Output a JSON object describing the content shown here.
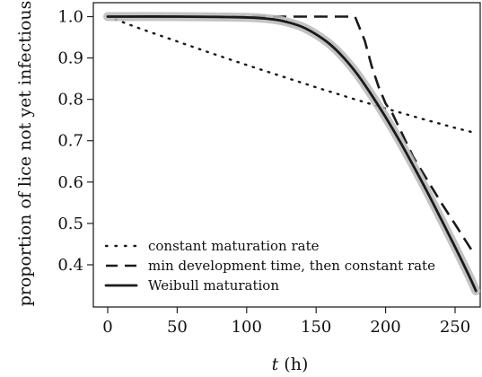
{
  "chart_data": {
    "type": "line",
    "xlabel": "t (h)",
    "xlabel_parts": {
      "italic": "t",
      "rest": " (h)"
    },
    "ylabel": "proportion of lice not yet infectious",
    "xlim": [
      0,
      265
    ],
    "ylim": [
      0.33,
      1.01
    ],
    "x_ticks": [
      0,
      50,
      100,
      150,
      200,
      250
    ],
    "y_ticks": [
      0.4,
      0.5,
      0.6,
      0.7,
      0.8,
      0.9,
      1.0
    ],
    "y_tick_labels": [
      "0.4",
      "0.5",
      "0.6",
      "0.7",
      "0.8",
      "0.9",
      "1.0"
    ],
    "grid": false,
    "legend_position": "bottom-left",
    "series": [
      {
        "name": "constant maturation rate",
        "style": "dotted",
        "x": [
          0,
          25,
          50,
          75,
          100,
          125,
          150,
          175,
          200,
          225,
          250,
          262
        ],
        "y": [
          1.0,
          0.969,
          0.94,
          0.911,
          0.883,
          0.856,
          0.829,
          0.803,
          0.778,
          0.754,
          0.731,
          0.721
        ]
      },
      {
        "name": "min development time, then constant rate",
        "style": "dashed",
        "x": [
          0,
          178,
          185,
          190,
          195,
          200,
          205,
          210,
          220,
          230,
          240,
          250,
          262
        ],
        "y": [
          1.0,
          1.0,
          0.942,
          0.88,
          0.83,
          0.79,
          0.765,
          0.73,
          0.66,
          0.605,
          0.55,
          0.498,
          0.435
        ]
      },
      {
        "name": "Weibull maturation",
        "style": "solid",
        "x": [
          0,
          50,
          100,
          120,
          130,
          140,
          150,
          160,
          170,
          180,
          190,
          200,
          210,
          220,
          230,
          240,
          250,
          260,
          265
        ],
        "y": [
          1.0,
          1.0,
          0.998,
          0.993,
          0.986,
          0.975,
          0.957,
          0.933,
          0.9,
          0.859,
          0.81,
          0.757,
          0.7,
          0.639,
          0.576,
          0.51,
          0.443,
          0.374,
          0.337
        ]
      }
    ]
  },
  "colors": {
    "axis": "#222222",
    "line": "#1a1a1a",
    "band": "#b8b8b8"
  }
}
